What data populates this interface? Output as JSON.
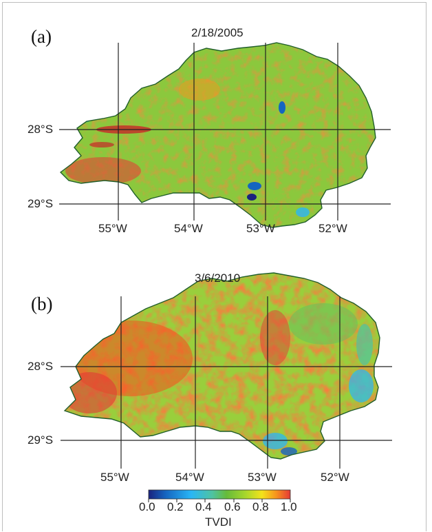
{
  "panels": [
    {
      "label": "(a)",
      "date": "2/18/2005"
    },
    {
      "label": "(b)",
      "date": "3/6/2010"
    }
  ],
  "latitudes": [
    "28°S",
    "29°S"
  ],
  "longitudes": [
    "55°W",
    "54°W",
    "53°W",
    "52°W"
  ],
  "colorbar": {
    "title": "TVDI",
    "ticks": [
      "0.0",
      "0.2",
      "0.4",
      "0.6",
      "0.8",
      "1.0"
    ],
    "range": [
      0.0,
      1.0
    ],
    "colors": [
      "#1a237e",
      "#1565c0",
      "#29b6f6",
      "#4fc3a1",
      "#66bb3a",
      "#a5d62c",
      "#f3e21b",
      "#f7941d",
      "#e53935",
      "#c62828"
    ]
  }
}
